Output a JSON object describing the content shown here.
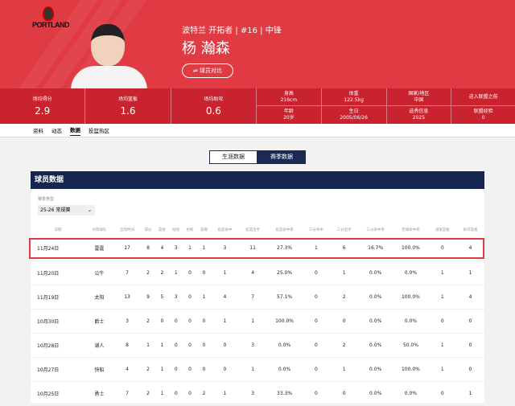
{
  "player": {
    "team_line": "波特兰 开拓者 | #16 | 中锋",
    "name": "杨 瀚森",
    "compare_button": "⇌ 球员对比",
    "logo_text": "PORTLAND"
  },
  "stats": {
    "big": [
      {
        "label": "场均得分",
        "value": "2.9"
      },
      {
        "label": "场均篮板",
        "value": "1.6"
      },
      {
        "label": "场均助攻",
        "value": "0.6"
      }
    ],
    "info": [
      {
        "top_label": "身高",
        "top_value": "216cm",
        "bottom_label": "年龄",
        "bottom_value": "20岁"
      },
      {
        "top_label": "体重",
        "top_value": "122.5kg",
        "bottom_label": "生日",
        "bottom_value": "2005/06/26"
      },
      {
        "top_label": "国家/地区",
        "top_value": "中国",
        "bottom_label": "选秀信息",
        "bottom_value": "2025"
      },
      {
        "top_label": "进入联盟之前",
        "top_value": "",
        "bottom_label": "联盟经验",
        "bottom_value": "0"
      }
    ]
  },
  "tabs": [
    "资料",
    "动态",
    "数据",
    "投篮热区"
  ],
  "active_tab": "数据",
  "toggle": {
    "career": "生涯数据",
    "season": "赛季数据"
  },
  "panel": {
    "title": "球员数据",
    "season_label": "赛季类型",
    "season_value": "25-26 常规赛"
  },
  "table": {
    "headers": [
      "日期",
      "对阵球队",
      "出场时间",
      "得分",
      "篮板",
      "助攻",
      "抢断",
      "盖帽",
      "投篮命中",
      "投篮出手",
      "投篮命中率",
      "三分命中",
      "三分出手",
      "三分命中率",
      "罚球命中率",
      "进攻篮板",
      "防守篮板"
    ],
    "rows": [
      [
        "11月24日",
        "雷霆",
        "17",
        "8",
        "4",
        "3",
        "1",
        "1",
        "3",
        "11",
        "27.3%",
        "1",
        "6",
        "16.7%",
        "100.0%",
        "0",
        "4"
      ],
      [
        "11月20日",
        "公牛",
        "7",
        "2",
        "2",
        "1",
        "0",
        "0",
        "1",
        "4",
        "25.0%",
        "0",
        "1",
        "0.0%",
        "0.0%",
        "1",
        "1"
      ],
      [
        "11月19日",
        "太阳",
        "13",
        "9",
        "5",
        "3",
        "0",
        "1",
        "4",
        "7",
        "57.1%",
        "0",
        "2",
        "0.0%",
        "100.0%",
        "1",
        "4"
      ],
      [
        "10月30日",
        "爵士",
        "3",
        "2",
        "0",
        "0",
        "0",
        "0",
        "1",
        "1",
        "100.0%",
        "0",
        "0",
        "0.0%",
        "0.0%",
        "0",
        "0"
      ],
      [
        "10月28日",
        "湖人",
        "8",
        "1",
        "1",
        "0",
        "0",
        "0",
        "0",
        "3",
        "0.0%",
        "0",
        "2",
        "0.0%",
        "50.0%",
        "1",
        "0"
      ],
      [
        "10月27日",
        "快船",
        "4",
        "2",
        "1",
        "0",
        "0",
        "0",
        "0",
        "1",
        "0.0%",
        "0",
        "1",
        "0.0%",
        "100.0%",
        "1",
        "0"
      ],
      [
        "10月25日",
        "勇士",
        "7",
        "2",
        "1",
        "0",
        "0",
        "2",
        "1",
        "3",
        "33.3%",
        "0",
        "0",
        "0.0%",
        "0.0%",
        "0",
        "1"
      ]
    ],
    "highlighted_row": 0
  },
  "colors": {
    "brand_red": "#e03a43",
    "navy": "#14264f"
  }
}
